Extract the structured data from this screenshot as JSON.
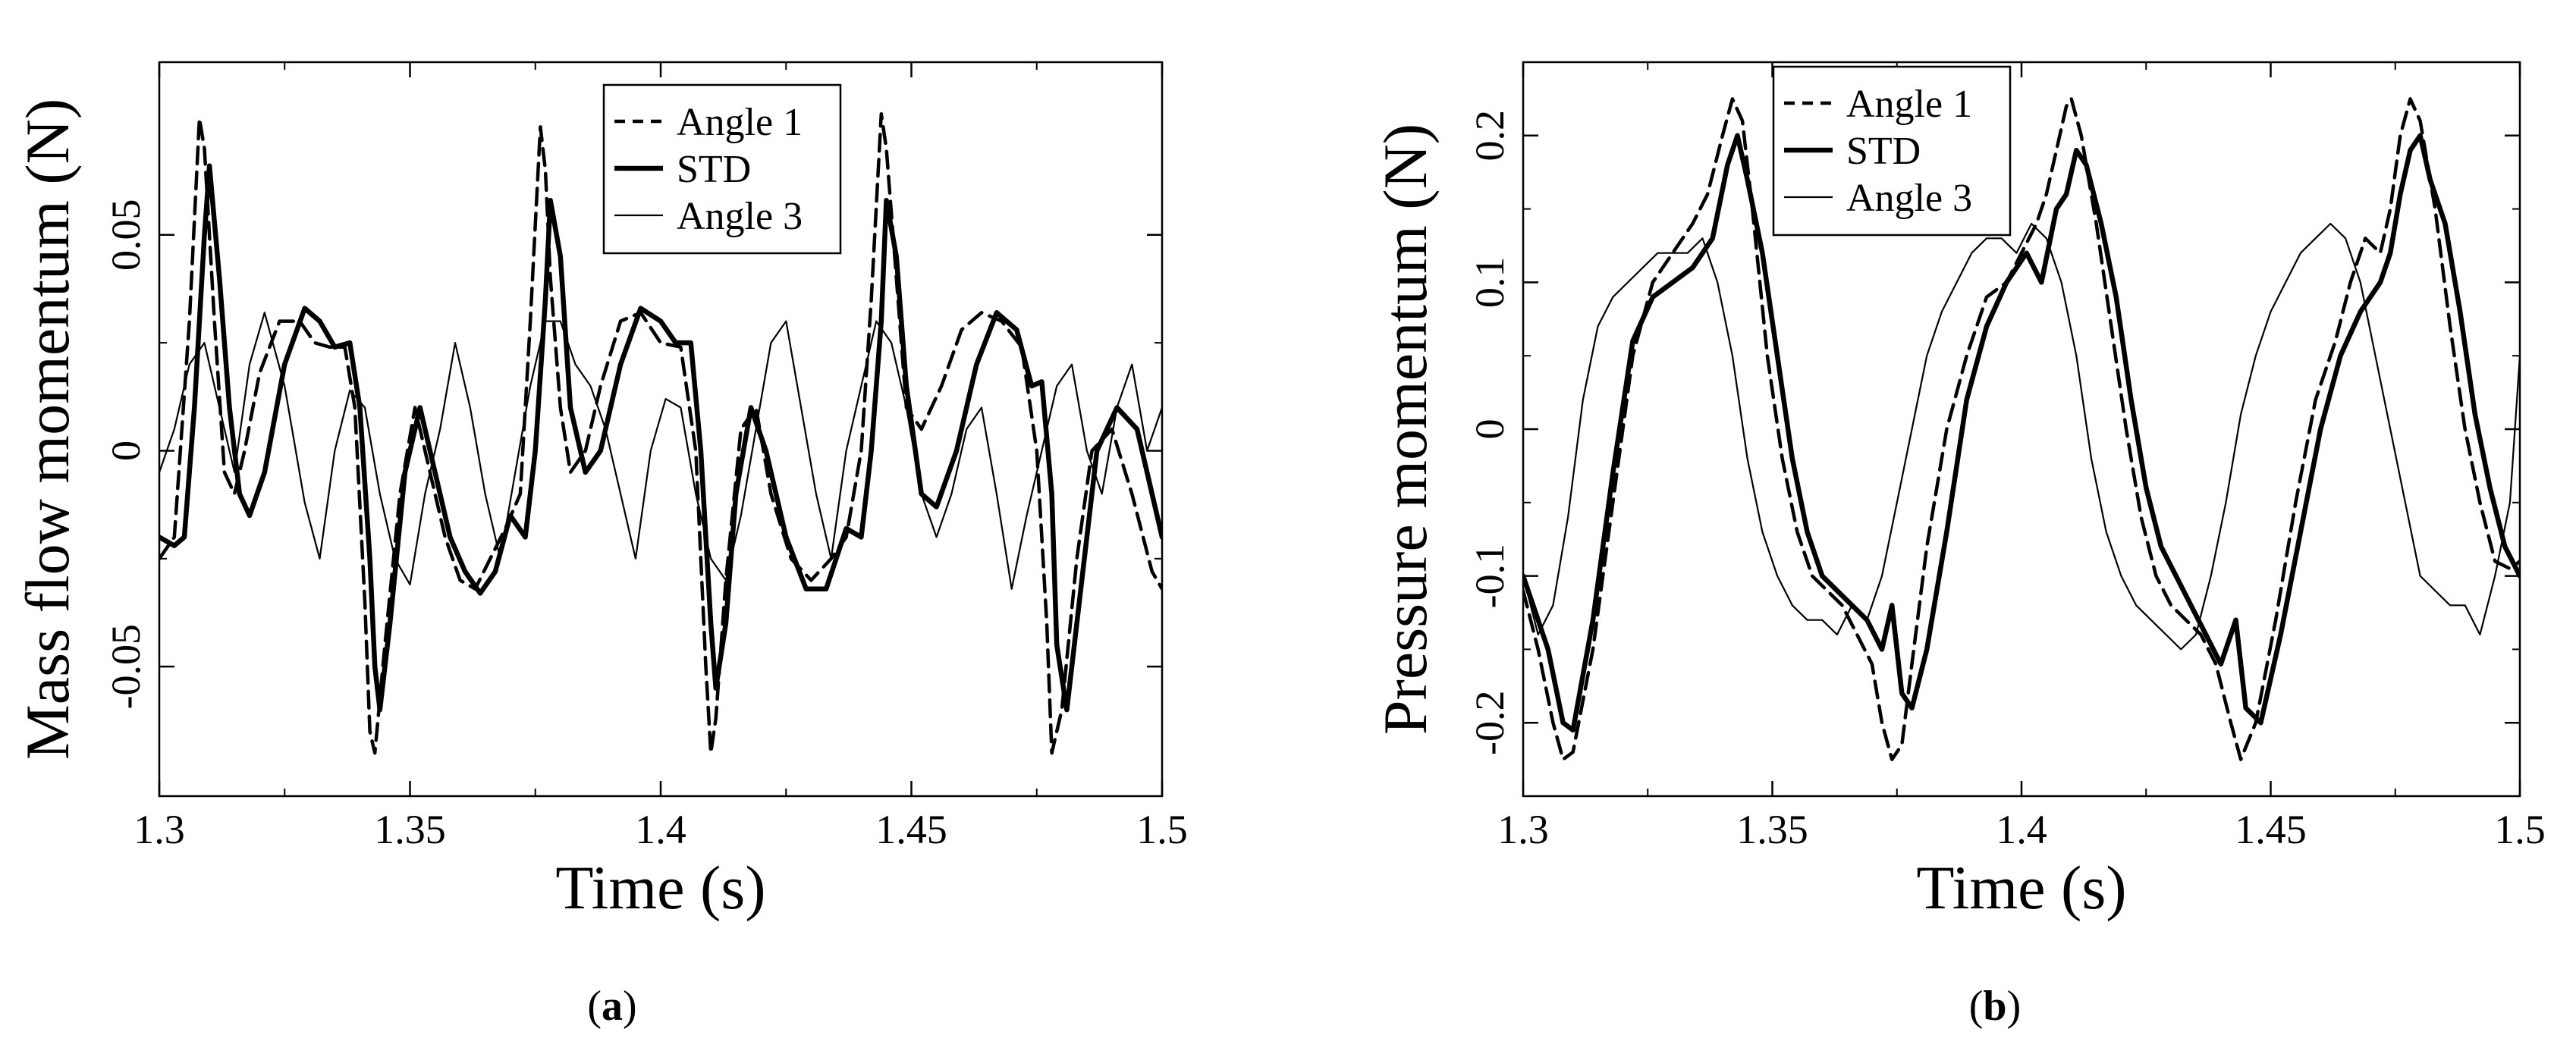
{
  "chart_data": [
    {
      "type": "line",
      "caption_letter": "a",
      "xlabel": "Time (s)",
      "ylabel": "Mass flow momentum (N)",
      "xlim": [
        1.3,
        1.5
      ],
      "ylim": [
        -0.08,
        0.09
      ],
      "xticks": [
        1.3,
        1.35,
        1.4,
        1.45,
        1.5
      ],
      "xtick_labels": [
        "1.3",
        "1.35",
        "1.4",
        "1.45",
        "1.5"
      ],
      "yticks": [
        -0.05,
        0,
        0.05
      ],
      "ytick_labels": [
        "-0.05",
        "0",
        "0.05"
      ],
      "grid": false,
      "legend_position": "top-center",
      "series": [
        {
          "name": "Angle 1",
          "style": "dashed",
          "x": [
            1.3,
            1.303,
            1.306,
            1.308,
            1.309,
            1.311,
            1.313,
            1.315,
            1.317,
            1.32,
            1.324,
            1.328,
            1.331,
            1.334,
            1.337,
            1.339,
            1.341,
            1.342,
            1.343,
            1.345,
            1.348,
            1.351,
            1.354,
            1.357,
            1.36,
            1.363,
            1.366,
            1.369,
            1.372,
            1.374,
            1.376,
            1.377,
            1.378,
            1.38,
            1.382,
            1.385,
            1.388,
            1.392,
            1.396,
            1.4,
            1.404,
            1.407,
            1.409,
            1.41,
            1.411,
            1.413,
            1.416,
            1.419,
            1.422,
            1.426,
            1.43,
            1.434,
            1.437,
            1.44,
            1.442,
            1.444,
            1.445,
            1.447,
            1.449,
            1.452,
            1.456,
            1.46,
            1.464,
            1.468,
            1.472,
            1.475,
            1.477,
            1.478,
            1.48,
            1.483,
            1.486,
            1.49,
            1.494,
            1.498,
            1.5
          ],
          "y": [
            -0.025,
            -0.02,
            0.03,
            0.077,
            0.07,
            0.03,
            -0.005,
            -0.01,
            0.0,
            0.018,
            0.03,
            0.03,
            0.025,
            0.024,
            0.024,
            0.01,
            -0.035,
            -0.065,
            -0.07,
            -0.045,
            -0.01,
            0.01,
            -0.005,
            -0.02,
            -0.03,
            -0.032,
            -0.025,
            -0.018,
            -0.01,
            0.03,
            0.075,
            0.065,
            0.04,
            0.01,
            -0.005,
            0.0,
            0.015,
            0.03,
            0.032,
            0.025,
            0.024,
            0.0,
            -0.05,
            -0.07,
            -0.062,
            -0.03,
            0.005,
            0.01,
            -0.01,
            -0.025,
            -0.03,
            -0.025,
            -0.02,
            0.0,
            0.035,
            0.078,
            0.07,
            0.04,
            0.01,
            0.005,
            0.015,
            0.028,
            0.032,
            0.03,
            0.024,
            0.0,
            -0.04,
            -0.07,
            -0.06,
            -0.025,
            0.0,
            0.005,
            -0.01,
            -0.028,
            -0.032
          ]
        },
        {
          "name": "STD",
          "style": "solid-thick",
          "x": [
            1.3,
            1.303,
            1.305,
            1.307,
            1.309,
            1.31,
            1.312,
            1.314,
            1.316,
            1.318,
            1.321,
            1.325,
            1.329,
            1.332,
            1.335,
            1.338,
            1.34,
            1.342,
            1.343,
            1.344,
            1.346,
            1.349,
            1.352,
            1.355,
            1.358,
            1.361,
            1.364,
            1.367,
            1.37,
            1.373,
            1.375,
            1.377,
            1.378,
            1.38,
            1.382,
            1.385,
            1.388,
            1.392,
            1.396,
            1.4,
            1.403,
            1.406,
            1.408,
            1.41,
            1.411,
            1.413,
            1.415,
            1.418,
            1.421,
            1.425,
            1.429,
            1.433,
            1.437,
            1.44,
            1.442,
            1.444,
            1.445,
            1.447,
            1.449,
            1.452,
            1.455,
            1.459,
            1.463,
            1.467,
            1.471,
            1.474,
            1.476,
            1.478,
            1.479,
            1.481,
            1.484,
            1.487,
            1.491,
            1.495,
            1.5
          ],
          "y": [
            -0.02,
            -0.022,
            -0.02,
            0.01,
            0.05,
            0.066,
            0.04,
            0.01,
            -0.01,
            -0.015,
            -0.005,
            0.02,
            0.033,
            0.03,
            0.024,
            0.025,
            0.01,
            -0.025,
            -0.05,
            -0.06,
            -0.04,
            -0.005,
            0.01,
            -0.005,
            -0.02,
            -0.028,
            -0.033,
            -0.028,
            -0.015,
            -0.02,
            0.0,
            0.035,
            0.058,
            0.045,
            0.01,
            -0.005,
            0.0,
            0.02,
            0.033,
            0.03,
            0.025,
            0.025,
            0.0,
            -0.04,
            -0.055,
            -0.04,
            -0.01,
            0.01,
            0.0,
            -0.02,
            -0.032,
            -0.032,
            -0.018,
            -0.02,
            0.0,
            0.03,
            0.058,
            0.045,
            0.015,
            -0.01,
            -0.013,
            0.0,
            0.02,
            0.032,
            0.028,
            0.015,
            0.016,
            -0.01,
            -0.045,
            -0.06,
            -0.03,
            0.0,
            0.01,
            0.005,
            -0.02
          ]
        },
        {
          "name": "Angle 3",
          "style": "solid-thin",
          "x": [
            1.3,
            1.303,
            1.306,
            1.309,
            1.312,
            1.315,
            1.318,
            1.321,
            1.325,
            1.329,
            1.332,
            1.335,
            1.338,
            1.341,
            1.344,
            1.347,
            1.35,
            1.353,
            1.356,
            1.359,
            1.362,
            1.365,
            1.368,
            1.371,
            1.374,
            1.377,
            1.38,
            1.383,
            1.386,
            1.389,
            1.392,
            1.395,
            1.398,
            1.401,
            1.404,
            1.407,
            1.41,
            1.413,
            1.416,
            1.419,
            1.422,
            1.425,
            1.428,
            1.431,
            1.434,
            1.437,
            1.44,
            1.443,
            1.446,
            1.449,
            1.452,
            1.455,
            1.458,
            1.461,
            1.464,
            1.467,
            1.47,
            1.473,
            1.476,
            1.479,
            1.482,
            1.485,
            1.488,
            1.491,
            1.494,
            1.497,
            1.5
          ],
          "y": [
            -0.005,
            0.005,
            0.02,
            0.025,
            0.01,
            -0.005,
            0.02,
            0.032,
            0.015,
            -0.012,
            -0.025,
            0.0,
            0.014,
            0.01,
            -0.01,
            -0.025,
            -0.031,
            -0.01,
            0.005,
            0.025,
            0.01,
            -0.01,
            -0.025,
            -0.005,
            0.015,
            0.03,
            0.03,
            0.02,
            0.015,
            0.005,
            -0.01,
            -0.025,
            0.0,
            0.012,
            0.01,
            -0.01,
            -0.025,
            -0.03,
            -0.015,
            0.005,
            0.025,
            0.03,
            0.01,
            -0.01,
            -0.025,
            0.0,
            0.015,
            0.03,
            0.025,
            0.01,
            -0.01,
            -0.02,
            -0.01,
            0.005,
            0.01,
            -0.01,
            -0.032,
            -0.015,
            0.0,
            0.015,
            0.02,
            0.0,
            -0.01,
            0.01,
            0.02,
            0.0,
            0.01
          ]
        }
      ]
    },
    {
      "type": "line",
      "caption_letter": "b",
      "xlabel": "Time (s)",
      "ylabel": "Pressure momentum (N)",
      "xlim": [
        1.3,
        1.5
      ],
      "ylim": [
        -0.25,
        0.25
      ],
      "xticks": [
        1.3,
        1.35,
        1.4,
        1.45,
        1.5
      ],
      "xtick_labels": [
        "1.3",
        "1.35",
        "1.4",
        "1.45",
        "1.5"
      ],
      "yticks": [
        -0.2,
        -0.1,
        0,
        0.1,
        0.2
      ],
      "ytick_labels": [
        "-0.2",
        "-0.1",
        "0",
        "0.1",
        "0.2"
      ],
      "grid": false,
      "legend_position": "top-left",
      "series": [
        {
          "name": "Angle 1",
          "style": "dashed",
          "x": [
            1.3,
            1.303,
            1.306,
            1.308,
            1.31,
            1.314,
            1.318,
            1.322,
            1.326,
            1.33,
            1.334,
            1.337,
            1.34,
            1.342,
            1.344,
            1.346,
            1.349,
            1.352,
            1.355,
            1.358,
            1.361,
            1.364,
            1.367,
            1.37,
            1.372,
            1.374,
            1.376,
            1.378,
            1.381,
            1.385,
            1.389,
            1.393,
            1.397,
            1.4,
            1.403,
            1.405,
            1.407,
            1.409,
            1.41,
            1.412,
            1.415,
            1.418,
            1.421,
            1.424,
            1.427,
            1.43,
            1.433,
            1.436,
            1.439,
            1.442,
            1.444,
            1.447,
            1.451,
            1.455,
            1.459,
            1.463,
            1.466,
            1.469,
            1.472,
            1.474,
            1.476,
            1.478,
            1.48,
            1.483,
            1.486,
            1.489,
            1.492,
            1.495,
            1.498,
            1.5
          ],
          "y": [
            -0.11,
            -0.15,
            -0.2,
            -0.225,
            -0.22,
            -0.15,
            -0.05,
            0.05,
            0.1,
            0.12,
            0.14,
            0.16,
            0.2,
            0.225,
            0.21,
            0.15,
            0.05,
            -0.02,
            -0.07,
            -0.1,
            -0.11,
            -0.12,
            -0.14,
            -0.16,
            -0.2,
            -0.225,
            -0.215,
            -0.16,
            -0.08,
            0.0,
            0.05,
            0.09,
            0.1,
            0.12,
            0.14,
            0.16,
            0.19,
            0.22,
            0.225,
            0.2,
            0.14,
            0.07,
            0.0,
            -0.06,
            -0.1,
            -0.12,
            -0.13,
            -0.14,
            -0.16,
            -0.2,
            -0.225,
            -0.2,
            -0.13,
            -0.05,
            0.02,
            0.06,
            0.1,
            0.13,
            0.12,
            0.15,
            0.2,
            0.225,
            0.21,
            0.15,
            0.07,
            0.0,
            -0.05,
            -0.09,
            -0.095,
            -0.09
          ]
        },
        {
          "name": "STD",
          "style": "solid-thick",
          "x": [
            1.3,
            1.303,
            1.305,
            1.308,
            1.31,
            1.314,
            1.318,
            1.322,
            1.326,
            1.33,
            1.334,
            1.338,
            1.341,
            1.343,
            1.345,
            1.348,
            1.351,
            1.354,
            1.357,
            1.36,
            1.363,
            1.366,
            1.369,
            1.372,
            1.374,
            1.376,
            1.378,
            1.381,
            1.385,
            1.389,
            1.393,
            1.397,
            1.401,
            1.404,
            1.407,
            1.409,
            1.411,
            1.413,
            1.416,
            1.419,
            1.422,
            1.425,
            1.428,
            1.431,
            1.434,
            1.437,
            1.44,
            1.443,
            1.445,
            1.448,
            1.452,
            1.456,
            1.46,
            1.464,
            1.468,
            1.472,
            1.474,
            1.476,
            1.478,
            1.48,
            1.482,
            1.485,
            1.488,
            1.491,
            1.494,
            1.497,
            1.5
          ],
          "y": [
            -0.1,
            -0.13,
            -0.15,
            -0.2,
            -0.205,
            -0.13,
            -0.03,
            0.06,
            0.09,
            0.1,
            0.11,
            0.13,
            0.18,
            0.2,
            0.17,
            0.12,
            0.05,
            -0.02,
            -0.07,
            -0.1,
            -0.11,
            -0.12,
            -0.13,
            -0.15,
            -0.12,
            -0.18,
            -0.19,
            -0.15,
            -0.07,
            0.02,
            0.07,
            0.1,
            0.12,
            0.1,
            0.15,
            0.16,
            0.19,
            0.18,
            0.14,
            0.09,
            0.02,
            -0.04,
            -0.08,
            -0.1,
            -0.12,
            -0.14,
            -0.16,
            -0.13,
            -0.19,
            -0.2,
            -0.14,
            -0.07,
            0.0,
            0.05,
            0.08,
            0.1,
            0.12,
            0.16,
            0.19,
            0.2,
            0.17,
            0.14,
            0.08,
            0.01,
            -0.04,
            -0.08,
            -0.1
          ]
        },
        {
          "name": "Angle 3",
          "style": "solid-thin",
          "x": [
            1.3,
            1.303,
            1.306,
            1.309,
            1.312,
            1.315,
            1.318,
            1.321,
            1.324,
            1.327,
            1.33,
            1.333,
            1.336,
            1.339,
            1.342,
            1.345,
            1.348,
            1.351,
            1.354,
            1.357,
            1.36,
            1.363,
            1.366,
            1.369,
            1.372,
            1.375,
            1.378,
            1.381,
            1.384,
            1.387,
            1.39,
            1.393,
            1.396,
            1.399,
            1.402,
            1.405,
            1.408,
            1.411,
            1.414,
            1.417,
            1.42,
            1.423,
            1.426,
            1.429,
            1.432,
            1.435,
            1.438,
            1.441,
            1.444,
            1.447,
            1.45,
            1.453,
            1.456,
            1.459,
            1.462,
            1.465,
            1.468,
            1.471,
            1.474,
            1.477,
            1.48,
            1.483,
            1.486,
            1.489,
            1.492,
            1.495,
            1.498,
            1.5
          ],
          "y": [
            -0.1,
            -0.14,
            -0.12,
            -0.06,
            0.02,
            0.07,
            0.09,
            0.1,
            0.11,
            0.12,
            0.12,
            0.12,
            0.13,
            0.1,
            0.05,
            -0.02,
            -0.07,
            -0.1,
            -0.12,
            -0.13,
            -0.13,
            -0.14,
            -0.12,
            -0.13,
            -0.1,
            -0.05,
            0.0,
            0.05,
            0.08,
            0.1,
            0.12,
            0.13,
            0.13,
            0.12,
            0.14,
            0.13,
            0.1,
            0.05,
            -0.02,
            -0.07,
            -0.1,
            -0.12,
            -0.13,
            -0.14,
            -0.15,
            -0.14,
            -0.1,
            -0.05,
            0.01,
            0.05,
            0.08,
            0.1,
            0.12,
            0.13,
            0.14,
            0.13,
            0.1,
            0.05,
            0.0,
            -0.05,
            -0.1,
            -0.11,
            -0.12,
            -0.12,
            -0.14,
            -0.1,
            -0.05,
            0.05
          ]
        }
      ]
    }
  ]
}
